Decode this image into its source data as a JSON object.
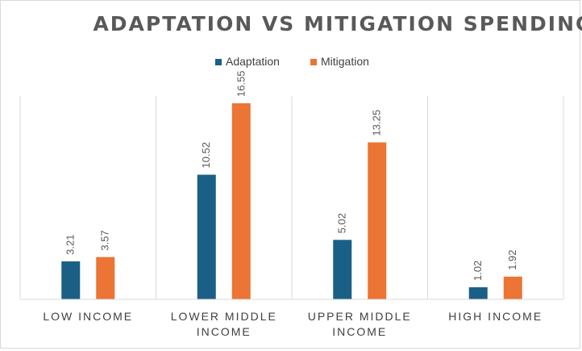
{
  "chart_data": {
    "type": "bar",
    "title": "ADAPTATION VS MITIGATION SPENDING",
    "categories": [
      [
        "LOW INCOME"
      ],
      [
        "LOWER MIDDLE",
        "INCOME"
      ],
      [
        "UPPER MIDDLE",
        "INCOME"
      ],
      [
        "HIGH INCOME"
      ]
    ],
    "series": [
      {
        "name": "Adaptation",
        "color": "#1a5f86",
        "values": [
          3.21,
          10.52,
          5.02,
          1.02
        ],
        "labels": [
          "3.21",
          "10.52",
          "5.02",
          "1.02"
        ]
      },
      {
        "name": "Mitigation",
        "color": "#ec7434",
        "values": [
          3.57,
          16.55,
          13.25,
          1.92
        ],
        "labels": [
          "3.57",
          "16.55",
          "13.25",
          "1.92"
        ]
      }
    ],
    "ylim": [
      0,
      18
    ],
    "xlabel": "",
    "ylabel": "",
    "grid": "vertical category separators",
    "legend_position": "top-center",
    "data_labels": "rotated above bars"
  }
}
